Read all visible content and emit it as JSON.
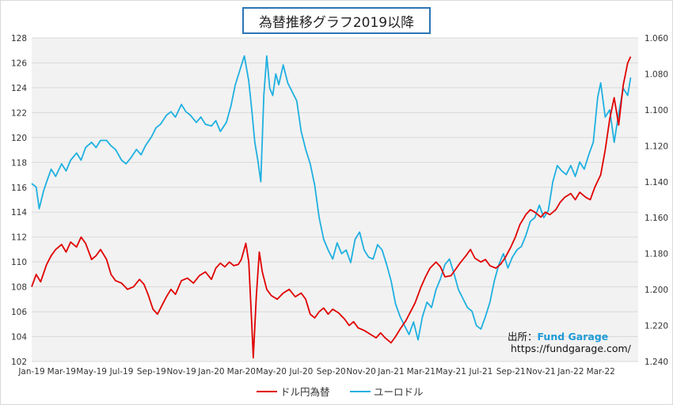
{
  "title": "為替推移グラフ2019以降",
  "source": {
    "prefix": "出所：",
    "name": "Fund Garage",
    "url": "https://fundgarage.com/"
  },
  "colors": {
    "usdjpy": "#e00000",
    "eurusd": "#1fb0e0",
    "plot_bg": "#f2f2f2",
    "grid": "#d9d9d9"
  },
  "chart_data": {
    "type": "line",
    "title": "為替推移グラフ2019以降",
    "x_ticks": [
      "Jan-19",
      "Mar-19",
      "May-19",
      "Jul-19",
      "Sep-19",
      "Nov-19",
      "Jan-20",
      "Mar-20",
      "May-20",
      "Jul-20",
      "Sep-20",
      "Nov-20",
      "Jan-21",
      "Mar-21",
      "May-21",
      "Jul-21",
      "Sep-21",
      "Nov-21",
      "Jan-22",
      "Mar-22"
    ],
    "x_range_months": [
      0,
      40.5
    ],
    "y_left": {
      "range": [
        102,
        128
      ],
      "ticks": [
        "102",
        "104",
        "106",
        "108",
        "110",
        "112",
        "114",
        "116",
        "118",
        "120",
        "122",
        "124",
        "126",
        "128"
      ]
    },
    "y_right": {
      "range": [
        1.24,
        1.06
      ],
      "inverted": true,
      "ticks": [
        "1.060",
        "1.080",
        "1.100",
        "1.120",
        "1.140",
        "1.160",
        "1.180",
        "1.200",
        "1.220",
        "1.240"
      ]
    },
    "legend": [
      "ドル円為替",
      "ユーロドル"
    ],
    "series": [
      {
        "name": "ドル円為替",
        "axis": "left",
        "points": [
          [
            0,
            108.0
          ],
          [
            0.3,
            109.0
          ],
          [
            0.6,
            108.4
          ],
          [
            1.0,
            109.8
          ],
          [
            1.3,
            110.5
          ],
          [
            1.6,
            111.0
          ],
          [
            2.0,
            111.4
          ],
          [
            2.3,
            110.8
          ],
          [
            2.6,
            111.6
          ],
          [
            3.0,
            111.2
          ],
          [
            3.3,
            112.0
          ],
          [
            3.6,
            111.5
          ],
          [
            4.0,
            110.2
          ],
          [
            4.3,
            110.5
          ],
          [
            4.6,
            111.0
          ],
          [
            5.0,
            110.2
          ],
          [
            5.3,
            109.0
          ],
          [
            5.6,
            108.5
          ],
          [
            6.0,
            108.3
          ],
          [
            6.4,
            107.8
          ],
          [
            6.8,
            108.0
          ],
          [
            7.2,
            108.6
          ],
          [
            7.5,
            108.2
          ],
          [
            7.8,
            107.3
          ],
          [
            8.1,
            106.2
          ],
          [
            8.4,
            105.8
          ],
          [
            8.7,
            106.5
          ],
          [
            9.0,
            107.2
          ],
          [
            9.3,
            107.8
          ],
          [
            9.6,
            107.4
          ],
          [
            10.0,
            108.5
          ],
          [
            10.4,
            108.7
          ],
          [
            10.8,
            108.3
          ],
          [
            11.2,
            108.9
          ],
          [
            11.6,
            109.2
          ],
          [
            12.0,
            108.6
          ],
          [
            12.3,
            109.5
          ],
          [
            12.6,
            109.9
          ],
          [
            12.9,
            109.6
          ],
          [
            13.2,
            110.0
          ],
          [
            13.5,
            109.7
          ],
          [
            13.8,
            109.8
          ],
          [
            14.0,
            110.2
          ],
          [
            14.3,
            111.5
          ],
          [
            14.5,
            110.0
          ],
          [
            14.7,
            105.0
          ],
          [
            14.8,
            102.3
          ],
          [
            15.0,
            107.2
          ],
          [
            15.2,
            110.8
          ],
          [
            15.4,
            109.2
          ],
          [
            15.7,
            107.8
          ],
          [
            16.0,
            107.3
          ],
          [
            16.4,
            107.0
          ],
          [
            16.8,
            107.5
          ],
          [
            17.2,
            107.8
          ],
          [
            17.6,
            107.2
          ],
          [
            18.0,
            107.5
          ],
          [
            18.3,
            107.0
          ],
          [
            18.6,
            105.8
          ],
          [
            18.9,
            105.5
          ],
          [
            19.2,
            106.0
          ],
          [
            19.5,
            106.3
          ],
          [
            19.8,
            105.8
          ],
          [
            20.1,
            106.2
          ],
          [
            20.5,
            105.9
          ],
          [
            20.9,
            105.4
          ],
          [
            21.2,
            104.9
          ],
          [
            21.5,
            105.2
          ],
          [
            21.8,
            104.7
          ],
          [
            22.2,
            104.5
          ],
          [
            22.6,
            104.2
          ],
          [
            23.0,
            103.9
          ],
          [
            23.3,
            104.3
          ],
          [
            23.6,
            103.9
          ],
          [
            24.0,
            103.5
          ],
          [
            24.3,
            104.0
          ],
          [
            24.6,
            104.6
          ],
          [
            25.0,
            105.3
          ],
          [
            25.3,
            106.0
          ],
          [
            25.6,
            106.7
          ],
          [
            26.0,
            108.0
          ],
          [
            26.3,
            108.8
          ],
          [
            26.6,
            109.5
          ],
          [
            27.0,
            110.0
          ],
          [
            27.3,
            109.6
          ],
          [
            27.6,
            108.8
          ],
          [
            28.0,
            108.9
          ],
          [
            28.3,
            109.4
          ],
          [
            28.6,
            109.9
          ],
          [
            29.0,
            110.5
          ],
          [
            29.3,
            111.0
          ],
          [
            29.6,
            110.3
          ],
          [
            30.0,
            110.0
          ],
          [
            30.3,
            110.2
          ],
          [
            30.6,
            109.7
          ],
          [
            31.0,
            109.5
          ],
          [
            31.3,
            109.8
          ],
          [
            31.6,
            110.3
          ],
          [
            32.0,
            111.2
          ],
          [
            32.3,
            112.0
          ],
          [
            32.6,
            113.0
          ],
          [
            33.0,
            113.8
          ],
          [
            33.3,
            114.2
          ],
          [
            33.6,
            114.0
          ],
          [
            34.0,
            113.6
          ],
          [
            34.3,
            114.0
          ],
          [
            34.6,
            113.8
          ],
          [
            35.0,
            114.2
          ],
          [
            35.3,
            114.8
          ],
          [
            35.6,
            115.2
          ],
          [
            36.0,
            115.5
          ],
          [
            36.3,
            115.0
          ],
          [
            36.6,
            115.6
          ],
          [
            37.0,
            115.2
          ],
          [
            37.3,
            115.0
          ],
          [
            37.6,
            116.0
          ],
          [
            38.0,
            117.0
          ],
          [
            38.3,
            119.0
          ],
          [
            38.6,
            121.5
          ],
          [
            38.9,
            123.2
          ],
          [
            39.2,
            121.0
          ],
          [
            39.5,
            124.2
          ],
          [
            39.8,
            126.0
          ],
          [
            40.0,
            126.5
          ]
        ]
      },
      {
        "name": "ユーロドル",
        "axis": "right",
        "points": [
          [
            0,
            1.141
          ],
          [
            0.3,
            1.143
          ],
          [
            0.5,
            1.155
          ],
          [
            0.8,
            1.145
          ],
          [
            1.0,
            1.14
          ],
          [
            1.3,
            1.133
          ],
          [
            1.6,
            1.137
          ],
          [
            2.0,
            1.13
          ],
          [
            2.3,
            1.134
          ],
          [
            2.6,
            1.128
          ],
          [
            3.0,
            1.124
          ],
          [
            3.3,
            1.128
          ],
          [
            3.6,
            1.121
          ],
          [
            4.0,
            1.118
          ],
          [
            4.3,
            1.121
          ],
          [
            4.6,
            1.117
          ],
          [
            5.0,
            1.117
          ],
          [
            5.3,
            1.12
          ],
          [
            5.6,
            1.122
          ],
          [
            6.0,
            1.128
          ],
          [
            6.3,
            1.13
          ],
          [
            6.6,
            1.127
          ],
          [
            7.0,
            1.122
          ],
          [
            7.3,
            1.125
          ],
          [
            7.6,
            1.12
          ],
          [
            8.0,
            1.115
          ],
          [
            8.3,
            1.11
          ],
          [
            8.6,
            1.108
          ],
          [
            9.0,
            1.103
          ],
          [
            9.3,
            1.101
          ],
          [
            9.6,
            1.104
          ],
          [
            10.0,
            1.097
          ],
          [
            10.3,
            1.101
          ],
          [
            10.6,
            1.103
          ],
          [
            11.0,
            1.107
          ],
          [
            11.3,
            1.104
          ],
          [
            11.6,
            1.108
          ],
          [
            12.0,
            1.109
          ],
          [
            12.3,
            1.106
          ],
          [
            12.6,
            1.112
          ],
          [
            13.0,
            1.107
          ],
          [
            13.3,
            1.098
          ],
          [
            13.6,
            1.086
          ],
          [
            13.9,
            1.078
          ],
          [
            14.2,
            1.07
          ],
          [
            14.5,
            1.084
          ],
          [
            14.7,
            1.1
          ],
          [
            14.9,
            1.118
          ],
          [
            15.1,
            1.128
          ],
          [
            15.3,
            1.14
          ],
          [
            15.5,
            1.092
          ],
          [
            15.7,
            1.07
          ],
          [
            15.9,
            1.088
          ],
          [
            16.1,
            1.092
          ],
          [
            16.3,
            1.08
          ],
          [
            16.5,
            1.086
          ],
          [
            16.8,
            1.075
          ],
          [
            17.1,
            1.085
          ],
          [
            17.4,
            1.09
          ],
          [
            17.7,
            1.095
          ],
          [
            18.0,
            1.112
          ],
          [
            18.3,
            1.122
          ],
          [
            18.6,
            1.13
          ],
          [
            18.9,
            1.142
          ],
          [
            19.2,
            1.16
          ],
          [
            19.5,
            1.172
          ],
          [
            19.8,
            1.178
          ],
          [
            20.1,
            1.183
          ],
          [
            20.4,
            1.174
          ],
          [
            20.7,
            1.18
          ],
          [
            21.0,
            1.178
          ],
          [
            21.3,
            1.185
          ],
          [
            21.6,
            1.172
          ],
          [
            21.9,
            1.168
          ],
          [
            22.2,
            1.178
          ],
          [
            22.5,
            1.182
          ],
          [
            22.8,
            1.183
          ],
          [
            23.1,
            1.175
          ],
          [
            23.4,
            1.178
          ],
          [
            23.7,
            1.186
          ],
          [
            24.0,
            1.195
          ],
          [
            24.3,
            1.208
          ],
          [
            24.6,
            1.215
          ],
          [
            24.9,
            1.22
          ],
          [
            25.2,
            1.225
          ],
          [
            25.5,
            1.218
          ],
          [
            25.8,
            1.228
          ],
          [
            26.1,
            1.215
          ],
          [
            26.4,
            1.207
          ],
          [
            26.7,
            1.21
          ],
          [
            27.0,
            1.2
          ],
          [
            27.3,
            1.194
          ],
          [
            27.6,
            1.186
          ],
          [
            27.9,
            1.183
          ],
          [
            28.2,
            1.191
          ],
          [
            28.5,
            1.2
          ],
          [
            28.8,
            1.205
          ],
          [
            29.1,
            1.21
          ],
          [
            29.4,
            1.212
          ],
          [
            29.7,
            1.22
          ],
          [
            30.0,
            1.222
          ],
          [
            30.3,
            1.215
          ],
          [
            30.6,
            1.207
          ],
          [
            30.9,
            1.195
          ],
          [
            31.2,
            1.186
          ],
          [
            31.5,
            1.18
          ],
          [
            31.8,
            1.188
          ],
          [
            32.1,
            1.182
          ],
          [
            32.4,
            1.178
          ],
          [
            32.7,
            1.176
          ],
          [
            33.0,
            1.17
          ],
          [
            33.3,
            1.162
          ],
          [
            33.6,
            1.16
          ],
          [
            33.9,
            1.153
          ],
          [
            34.2,
            1.16
          ],
          [
            34.5,
            1.156
          ],
          [
            34.8,
            1.14
          ],
          [
            35.1,
            1.131
          ],
          [
            35.4,
            1.134
          ],
          [
            35.7,
            1.136
          ],
          [
            36.0,
            1.131
          ],
          [
            36.3,
            1.137
          ],
          [
            36.6,
            1.129
          ],
          [
            36.9,
            1.133
          ],
          [
            37.2,
            1.125
          ],
          [
            37.5,
            1.118
          ],
          [
            37.8,
            1.093
          ],
          [
            38.0,
            1.085
          ],
          [
            38.3,
            1.104
          ],
          [
            38.6,
            1.1
          ],
          [
            38.9,
            1.118
          ],
          [
            39.2,
            1.102
          ],
          [
            39.5,
            1.088
          ],
          [
            39.8,
            1.092
          ],
          [
            40.0,
            1.082
          ]
        ]
      }
    ]
  }
}
